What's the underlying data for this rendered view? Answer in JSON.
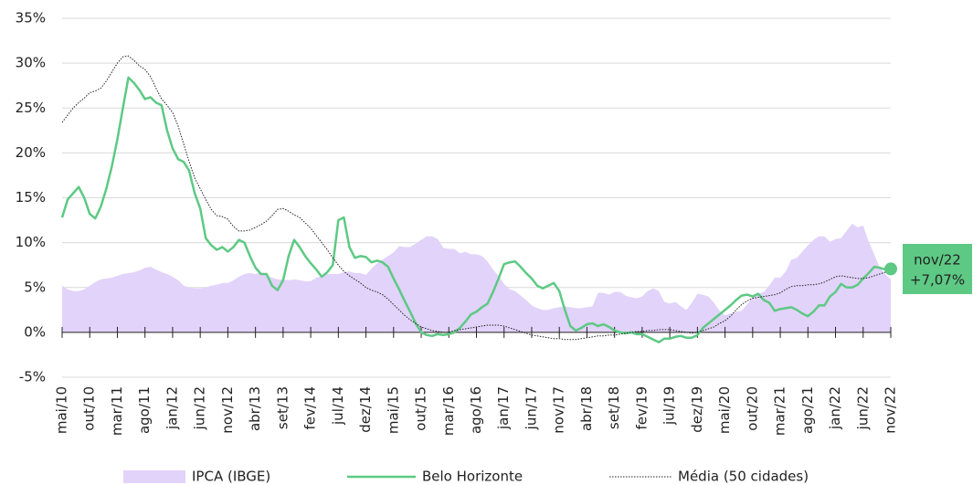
{
  "chart_data": {
    "type": "line",
    "categories": [
      "mai/10",
      null,
      null,
      null,
      null,
      "out/10",
      null,
      null,
      null,
      null,
      "mar/11",
      null,
      null,
      null,
      null,
      "ago/11",
      null,
      null,
      null,
      null,
      "jan/12",
      null,
      null,
      null,
      null,
      "jun/12",
      null,
      null,
      null,
      null,
      "nov/12",
      null,
      null,
      null,
      null,
      "abr/13",
      null,
      null,
      null,
      null,
      "set/13",
      null,
      null,
      null,
      null,
      "fev/14",
      null,
      null,
      null,
      null,
      "jul/14",
      null,
      null,
      null,
      null,
      "dez/14",
      null,
      null,
      null,
      null,
      "mai/15",
      null,
      null,
      null,
      null,
      "out/15",
      null,
      null,
      null,
      null,
      "mar/16",
      null,
      null,
      null,
      null,
      "ago/16",
      null,
      null,
      null,
      null,
      "jan/17",
      null,
      null,
      null,
      null,
      "jun/17",
      null,
      null,
      null,
      null,
      "nov/17",
      null,
      null,
      null,
      null,
      "abr/18",
      null,
      null,
      null,
      null,
      "set/18",
      null,
      null,
      null,
      null,
      "fev/19",
      null,
      null,
      null,
      null,
      "jul/19",
      null,
      null,
      null,
      null,
      "dez/19",
      null,
      null,
      null,
      null,
      "mai/20",
      null,
      null,
      null,
      null,
      "out/20",
      null,
      null,
      null,
      null,
      "mar/21",
      null,
      null,
      null,
      null,
      "ago/21",
      null,
      null,
      null,
      null,
      "jan/22",
      null,
      null,
      null,
      null,
      "jun/22",
      null,
      null,
      null,
      null,
      "nov/22"
    ],
    "series": [
      {
        "name": "IPCA (IBGE)",
        "kind": "area",
        "color": "#e2d3fa",
        "values": [
          5.2,
          4.8,
          4.6,
          4.6,
          4.8,
          5.2,
          5.6,
          5.9,
          6,
          6.1,
          6.3,
          6.5,
          6.6,
          6.7,
          6.9,
          7.2,
          7.3,
          7,
          6.7,
          6.5,
          6.2,
          5.8,
          5.2,
          5,
          4.9,
          4.9,
          5,
          5.2,
          5.3,
          5.5,
          5.5,
          5.8,
          6.2,
          6.5,
          6.6,
          6.5,
          6.7,
          6.3,
          6.1,
          5.9,
          5.9,
          5.8,
          5.9,
          5.8,
          5.7,
          5.7,
          6.1,
          6.3,
          6.5,
          6.5,
          6.5,
          6.7,
          6.8,
          6.6,
          6.6,
          6.4,
          7.1,
          7.7,
          8.1,
          8.5,
          8.9,
          9.6,
          9.5,
          9.5,
          9.9,
          10.3,
          10.7,
          10.7,
          10.4,
          9.4,
          9.3,
          9.3,
          8.8,
          9,
          8.7,
          8.7,
          8.5,
          7.9,
          7,
          6.3,
          5.4,
          4.8,
          4.6,
          4.1,
          3.6,
          3,
          2.7,
          2.5,
          2.5,
          2.7,
          2.8,
          2.9,
          2.8,
          2.7,
          2.7,
          2.8,
          2.9,
          4.4,
          4.4,
          4.2,
          4.5,
          4.5,
          4.1,
          3.9,
          3.8,
          4,
          4.6,
          4.9,
          4.6,
          3.4,
          3.2,
          3.4,
          2.9,
          2.5,
          3.3,
          4.3,
          4.2,
          4,
          3.3,
          2.4,
          1.9,
          2.1,
          2.3,
          2.4,
          3.1,
          3.9,
          4.3,
          4.5,
          5.2,
          6.1,
          6.1,
          6.8,
          8.1,
          8.3,
          9,
          9.7,
          10.3,
          10.7,
          10.7,
          10.1,
          10.4,
          10.5,
          11.3,
          12.1,
          11.7,
          11.9,
          10.1,
          8.7,
          7.2,
          6.5,
          5.9
        ]
      },
      {
        "name": "Belo Horizonte",
        "kind": "line",
        "color": "#5dc984",
        "values": [
          12.8,
          14.8,
          15.5,
          16.2,
          15,
          13.2,
          12.7,
          14,
          16,
          18.5,
          21.5,
          25,
          28.4,
          27.8,
          27,
          26,
          26.2,
          25.6,
          25.3,
          22.5,
          20.5,
          19.3,
          19,
          18,
          15.5,
          13.8,
          10.5,
          9.7,
          9.2,
          9.5,
          9,
          9.5,
          10.3,
          10,
          8.5,
          7.2,
          6.5,
          6.5,
          5.2,
          4.7,
          5.8,
          8.5,
          10.3,
          9.5,
          8.5,
          7.7,
          7,
          6.2,
          6.7,
          7.5,
          12.5,
          12.8,
          9.5,
          8.3,
          8.5,
          8.4,
          7.8,
          8,
          7.8,
          7.3,
          6,
          4.8,
          3.5,
          2.3,
          1,
          0,
          -0.3,
          -0.4,
          -0.2,
          -0.3,
          -0.2,
          0,
          0.5,
          1.2,
          2,
          2.3,
          2.8,
          3.2,
          4.5,
          6,
          7.6,
          7.8,
          7.9,
          7.3,
          6.6,
          6,
          5.2,
          4.9,
          5.2,
          5.5,
          4.6,
          2.5,
          0.7,
          0.2,
          0.5,
          0.9,
          1,
          0.7,
          0.9,
          0.6,
          0.2,
          0,
          -0.1,
          0,
          -0.2,
          -0.2,
          -0.5,
          -0.8,
          -1.1,
          -0.7,
          -0.7,
          -0.5,
          -0.4,
          -0.6,
          -0.6,
          -0.3,
          0.5,
          1,
          1.5,
          2,
          2.5,
          3,
          3.6,
          4.1,
          4.2,
          4,
          4.3,
          3.6,
          3.3,
          2.4,
          2.6,
          2.7,
          2.8,
          2.5,
          2.1,
          1.8,
          2.3,
          3,
          3,
          4,
          4.5,
          5.4,
          5,
          5,
          5.3,
          6,
          6.6,
          7.3,
          7.2,
          7,
          7.07
        ]
      },
      {
        "name": "Média (50 cidades)",
        "kind": "dotted",
        "color": "#222222",
        "values": [
          23.4,
          24.2,
          25,
          25.6,
          26.1,
          26.7,
          26.9,
          27.2,
          28,
          29,
          30,
          30.7,
          30.8,
          30.3,
          29.7,
          29.3,
          28.5,
          27.2,
          26,
          25.3,
          24.5,
          23,
          21,
          19,
          17.2,
          16,
          14.8,
          13.7,
          13,
          12.9,
          12.6,
          11.8,
          11.3,
          11.3,
          11.4,
          11.7,
          12,
          12.4,
          13,
          13.7,
          13.8,
          13.5,
          13.1,
          12.8,
          12.2,
          11.6,
          10.8,
          10,
          9.2,
          8.3,
          7.5,
          6.8,
          6.3,
          5.9,
          5.5,
          5,
          4.7,
          4.5,
          4.2,
          3.7,
          3.1,
          2.5,
          1.9,
          1.4,
          1,
          0.6,
          0.4,
          0.2,
          0.1,
          0,
          0,
          0.2,
          0.3,
          0.4,
          0.5,
          0.6,
          0.7,
          0.8,
          0.8,
          0.8,
          0.7,
          0.5,
          0.3,
          0.1,
          -0.1,
          -0.3,
          -0.4,
          -0.5,
          -0.6,
          -0.7,
          -0.7,
          -0.8,
          -0.8,
          -0.8,
          -0.7,
          -0.6,
          -0.5,
          -0.4,
          -0.4,
          -0.3,
          -0.3,
          -0.2,
          -0.1,
          0,
          0.1,
          0.1,
          0.2,
          0.2,
          0.3,
          0.3,
          0.3,
          0.2,
          0.1,
          0,
          -0.1,
          0,
          0.2,
          0.4,
          0.6,
          1,
          1.3,
          1.8,
          2.5,
          3.1,
          3.5,
          3.8,
          3.9,
          4,
          4.1,
          4.2,
          4.4,
          4.8,
          5.1,
          5.2,
          5.2,
          5.3,
          5.3,
          5.4,
          5.6,
          5.9,
          6.2,
          6.3,
          6.2,
          6.1,
          6,
          6,
          6.1,
          6.3,
          6.5,
          6.7,
          6.8
        ]
      }
    ],
    "ylim": [
      -5,
      35
    ],
    "yticks": [
      {
        "value": -5,
        "label": "-5%"
      },
      {
        "value": 0,
        "label": "0%"
      },
      {
        "value": 5,
        "label": "5%"
      },
      {
        "value": 10,
        "label": "10%"
      },
      {
        "value": 15,
        "label": "15%"
      },
      {
        "value": 20,
        "label": "20%"
      },
      {
        "value": 25,
        "label": "25%"
      },
      {
        "value": 30,
        "label": "30%"
      },
      {
        "value": 35,
        "label": "35%"
      }
    ],
    "grid": true,
    "annotation": [
      "nov/22",
      "+7,07%"
    ],
    "annotation_color": "#5dc984"
  }
}
